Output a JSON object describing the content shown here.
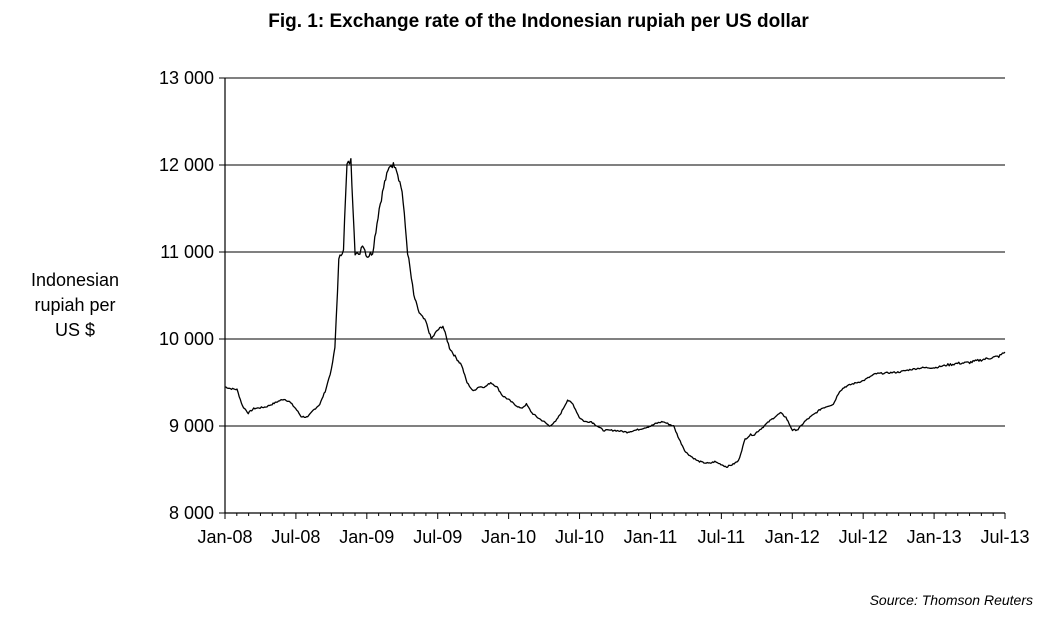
{
  "title": {
    "prefix": "Fig. 1",
    "text": ": Exchange rate of the Indonesian rupiah per US dollar"
  },
  "ylabel_lines": [
    "Indonesian",
    "rupiah per",
    "US $"
  ],
  "source": "Source: Thomson Reuters",
  "chart_data": {
    "type": "line",
    "title": "Fig. 1: Exchange rate of the Indonesian rupiah per US dollar",
    "xlabel": "",
    "ylabel": "Indonesian rupiah per US $",
    "ylim": [
      8000,
      13000
    ],
    "xlim": [
      "2008-01",
      "2013-07"
    ],
    "y_ticks": [
      8000,
      9000,
      10000,
      11000,
      12000,
      13000
    ],
    "y_tick_labels": [
      "8 000",
      "9 000",
      "10 000",
      "11 000",
      "12 000",
      "13 000"
    ],
    "x_tick_labels": [
      "Jan-08",
      "Jul-08",
      "Jan-09",
      "Jul-09",
      "Jan-10",
      "Jul-10",
      "Jan-11",
      "Jul-11",
      "Jan-12",
      "Jul-12",
      "Jan-13",
      "Jul-13"
    ],
    "grid": "horizontal",
    "legend": "none",
    "series": [
      {
        "x": [
          "2008-01-01",
          "2008-01-15",
          "2008-02-01",
          "2008-02-15",
          "2008-03-01",
          "2008-03-15",
          "2008-04-01",
          "2008-04-15",
          "2008-05-01",
          "2008-05-15",
          "2008-06-01",
          "2008-06-15",
          "2008-07-01",
          "2008-07-15",
          "2008-08-01",
          "2008-08-15",
          "2008-09-01",
          "2008-09-15",
          "2008-10-01",
          "2008-10-10",
          "2008-10-20",
          "2008-11-01",
          "2008-11-10",
          "2008-11-20",
          "2008-12-01",
          "2008-12-10",
          "2008-12-20",
          "2009-01-01",
          "2009-01-15",
          "2009-02-01",
          "2009-02-15",
          "2009-03-01",
          "2009-03-15",
          "2009-04-01",
          "2009-04-15",
          "2009-05-01",
          "2009-05-15",
          "2009-06-01",
          "2009-06-15",
          "2009-07-01",
          "2009-07-15",
          "2009-08-01",
          "2009-08-15",
          "2009-09-01",
          "2009-09-15",
          "2009-10-01",
          "2009-10-15",
          "2009-11-01",
          "2009-11-15",
          "2009-12-01",
          "2009-12-15",
          "2010-01-01",
          "2010-01-15",
          "2010-02-01",
          "2010-02-15",
          "2010-03-01",
          "2010-03-15",
          "2010-04-01",
          "2010-04-15",
          "2010-05-01",
          "2010-05-15",
          "2010-06-01",
          "2010-06-15",
          "2010-07-01",
          "2010-07-15",
          "2010-08-01",
          "2010-09-01",
          "2010-10-01",
          "2010-11-01",
          "2010-12-01",
          "2011-01-01",
          "2011-01-15",
          "2011-02-01",
          "2011-03-01",
          "2011-03-15",
          "2011-04-01",
          "2011-04-15",
          "2011-05-01",
          "2011-05-15",
          "2011-06-01",
          "2011-06-15",
          "2011-07-01",
          "2011-07-15",
          "2011-08-01",
          "2011-08-15",
          "2011-09-01",
          "2011-09-15",
          "2011-09-25",
          "2011-10-01",
          "2011-10-15",
          "2011-11-01",
          "2011-11-15",
          "2011-12-01",
          "2011-12-15",
          "2012-01-01",
          "2012-01-15",
          "2012-02-01",
          "2012-02-15",
          "2012-03-01",
          "2012-03-15",
          "2012-04-01",
          "2012-04-15",
          "2012-05-01",
          "2012-05-15",
          "2012-06-01",
          "2012-06-15",
          "2012-07-01",
          "2012-08-01",
          "2012-09-01",
          "2012-10-01",
          "2012-11-01",
          "2012-12-01",
          "2013-01-01",
          "2013-02-01",
          "2013-03-01",
          "2013-04-01",
          "2013-05-01",
          "2013-06-01",
          "2013-06-15",
          "2013-07-01"
        ],
        "y": [
          9450,
          9430,
          9420,
          9230,
          9150,
          9200,
          9210,
          9220,
          9250,
          9280,
          9310,
          9280,
          9200,
          9110,
          9100,
          9180,
          9250,
          9400,
          9650,
          9900,
          10900,
          11050,
          12000,
          12050,
          11000,
          10950,
          11100,
          10950,
          11000,
          11500,
          11800,
          12000,
          12000,
          11700,
          11000,
          10500,
          10300,
          10200,
          10000,
          10100,
          10150,
          9900,
          9800,
          9700,
          9500,
          9400,
          9450,
          9450,
          9500,
          9450,
          9350,
          9300,
          9250,
          9200,
          9250,
          9150,
          9100,
          9050,
          9000,
          9050,
          9150,
          9300,
          9250,
          9100,
          9050,
          9050,
          8950,
          8950,
          8930,
          8960,
          9000,
          9030,
          9050,
          9000,
          8850,
          8700,
          8650,
          8600,
          8580,
          8570,
          8590,
          8560,
          8530,
          8560,
          8600,
          8850,
          8900,
          8900,
          8930,
          8980,
          9050,
          9100,
          9150,
          9100,
          8950,
          8960,
          9050,
          9100,
          9150,
          9200,
          9230,
          9250,
          9400,
          9450,
          9480,
          9500,
          9520,
          9600,
          9610,
          9620,
          9650,
          9670,
          9670,
          9700,
          9720,
          9730,
          9760,
          9790,
          9800,
          9850
        ]
      }
    ]
  }
}
